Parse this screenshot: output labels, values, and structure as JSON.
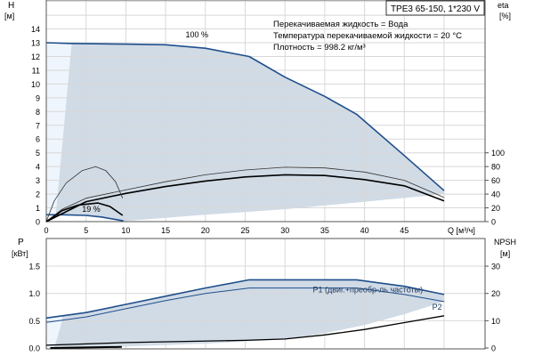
{
  "title_box": "TPE3 65-150, 1*230 V",
  "info": [
    "Перекачиваемая жидкость = Вода",
    "Температура перекачиваемой жидкости = 20 °C",
    "Плотность = 998.2 кг/м³"
  ],
  "colors": {
    "curve_blue": "#1f4e8c",
    "area_dark": "#d0dbe6",
    "area_light": "#eef5fc",
    "black": "#000000"
  },
  "chart_data": [
    {
      "type": "line",
      "name": "head",
      "xlabel": "Q [м³/ч]",
      "ylabel": "H",
      "ylabel_unit": "[м]",
      "y2label": "eta",
      "y2label_unit": "[%]",
      "xlim": [
        0,
        50
      ],
      "ylim": [
        0,
        14
      ],
      "y2lim": [
        0,
        100
      ],
      "grid": true,
      "xticks": [
        0,
        5,
        10,
        15,
        20,
        25,
        30,
        35,
        40,
        45
      ],
      "yticks": [
        0,
        1,
        2,
        3,
        4,
        5,
        6,
        7,
        8,
        9,
        10,
        11,
        12,
        13,
        14
      ],
      "y2ticks": [
        0,
        20,
        40,
        60,
        80,
        100
      ],
      "annotations": [
        {
          "text": "100 %",
          "x": 17.5,
          "y": 13.4
        },
        {
          "text": "19 %",
          "x": 4.5,
          "y": 0.7
        }
      ],
      "series": [
        {
          "label": "100 %",
          "style": "blue",
          "points": [
            [
              0,
              13
            ],
            [
              3,
              12.95
            ],
            [
              10,
              12.9
            ],
            [
              15,
              12.85
            ],
            [
              20,
              12.6
            ],
            [
              25.5,
              12
            ],
            [
              30,
              10.5
            ],
            [
              35,
              9.1
            ],
            [
              39,
              7.8
            ],
            [
              45,
              4.8
            ],
            [
              50,
              2.25
            ]
          ]
        },
        {
          "label": "19 %",
          "style": "blue",
          "points": [
            [
              0,
              0.5
            ],
            [
              2,
              0.5
            ],
            [
              5,
              0.45
            ],
            [
              7,
              0.33
            ],
            [
              9.7,
              0.05
            ]
          ]
        },
        {
          "label": "eta",
          "axis": "eta",
          "style": "thin",
          "points": [
            [
              0,
              0
            ],
            [
              2,
              18
            ],
            [
              5,
              34
            ],
            [
              10,
              46
            ],
            [
              15,
              58
            ],
            [
              20,
              68
            ],
            [
              25,
              75
            ],
            [
              30,
              79
            ],
            [
              35,
              78
            ],
            [
              40,
              72
            ],
            [
              45,
              60
            ],
            [
              50,
              35
            ]
          ]
        },
        {
          "label": "eta",
          "axis": "eta",
          "style": "thick",
          "points": [
            [
              0,
              0
            ],
            [
              5,
              29
            ],
            [
              10,
              41
            ],
            [
              15,
              51
            ],
            [
              20,
              59
            ],
            [
              25,
              65
            ],
            [
              30,
              68
            ],
            [
              35,
              67
            ],
            [
              40,
              61
            ],
            [
              45,
              52
            ],
            [
              50,
              30
            ]
          ]
        },
        {
          "label": "eta 19 %",
          "axis": "eta",
          "style": "thin",
          "points": [
            [
              0,
              0
            ],
            [
              1,
              30
            ],
            [
              2.5,
              56
            ],
            [
              4.5,
              74
            ],
            [
              6.2,
              80
            ],
            [
              7.5,
              74
            ],
            [
              8.7,
              58
            ],
            [
              9.6,
              34
            ]
          ]
        },
        {
          "label": "eta 19 %",
          "axis": "eta",
          "style": "thick",
          "points": [
            [
              0,
              0
            ],
            [
              2,
              16
            ],
            [
              4,
              24
            ],
            [
              6.5,
              27
            ],
            [
              8,
              22
            ],
            [
              9.6,
              9
            ]
          ]
        }
      ],
      "area_dark": [
        [
          3.2,
          13
        ],
        [
          10,
          12.9
        ],
        [
          15,
          12.85
        ],
        [
          20,
          12.6
        ],
        [
          25.5,
          12
        ],
        [
          30,
          10.5
        ],
        [
          35,
          9.1
        ],
        [
          39,
          7.8
        ],
        [
          45,
          4.8
        ],
        [
          50,
          2.25
        ],
        [
          50,
          2.0
        ],
        [
          30,
          0.9
        ],
        [
          20,
          0.5
        ],
        [
          10,
          0.05
        ],
        [
          9.7,
          0.05
        ],
        [
          7,
          0.33
        ],
        [
          5,
          0.45
        ],
        [
          1.2,
          0.5
        ]
      ],
      "area_light": [
        [
          0,
          13
        ],
        [
          3.2,
          13
        ],
        [
          1.2,
          0.5
        ],
        [
          0,
          0.5
        ]
      ]
    },
    {
      "type": "line",
      "name": "power",
      "xlabel": "",
      "ylabel": "P",
      "ylabel_unit": "[кВт]",
      "y2label": "NPSH",
      "y2label_unit": "[м]",
      "xlim": [
        0,
        50
      ],
      "ylim": [
        0,
        2
      ],
      "y2lim": [
        0,
        40
      ],
      "grid": true,
      "yticks": [
        "0.0",
        "0.5",
        "1.0",
        "1.5"
      ],
      "y2ticks": [
        0,
        10,
        20,
        30
      ],
      "annotations": [
        {
          "text": "P1 (двиг.+преобр-ль частоты)",
          "x": 33.5,
          "y": 1.02
        },
        {
          "text": "P2",
          "x": 48.5,
          "y": 0.7
        }
      ],
      "series": [
        {
          "label": "P1 (двиг.+преобр-ль частоты)",
          "style": "blue",
          "points": [
            [
              0,
              0.55
            ],
            [
              5,
              0.65
            ],
            [
              10,
              0.8
            ],
            [
              15,
              0.95
            ],
            [
              20,
              1.1
            ],
            [
              25.5,
              1.25
            ],
            [
              39,
              1.25
            ],
            [
              45,
              1.13
            ],
            [
              50,
              0.98
            ]
          ]
        },
        {
          "label": "P2",
          "style": "blue-thin",
          "points": [
            [
              0,
              0.47
            ],
            [
              5,
              0.57
            ],
            [
              10,
              0.72
            ],
            [
              15,
              0.87
            ],
            [
              20,
              1.0
            ],
            [
              25.5,
              1.1
            ],
            [
              39,
              1.1
            ],
            [
              45,
              0.98
            ],
            [
              50,
              0.85
            ]
          ]
        },
        {
          "label": "NPSH",
          "axis": "npsh",
          "style": "black",
          "points": [
            [
              0,
              1
            ],
            [
              10,
              2
            ],
            [
              25,
              2.8
            ],
            [
              30,
              3.3
            ],
            [
              35,
              4.8
            ],
            [
              40,
              6.8
            ],
            [
              45,
              9.3
            ],
            [
              50,
              11.8
            ]
          ]
        },
        {
          "label": "P 19 %",
          "style": "black-thick",
          "points": [
            [
              0.5,
              0.0
            ],
            [
              9.5,
              0.02
            ]
          ]
        }
      ],
      "area_dark": [
        [
          2,
          0.6
        ],
        [
          5,
          0.65
        ],
        [
          10,
          0.8
        ],
        [
          15,
          0.95
        ],
        [
          20,
          1.1
        ],
        [
          25.5,
          1.25
        ],
        [
          39,
          1.25
        ],
        [
          45,
          1.13
        ],
        [
          50,
          0.98
        ],
        [
          50,
          0.85
        ],
        [
          45,
          0.62
        ],
        [
          40,
          0.42
        ],
        [
          35,
          0.27
        ],
        [
          30,
          0.16
        ],
        [
          20,
          0.08
        ],
        [
          10,
          0.03
        ],
        [
          1,
          0
        ],
        [
          2,
          0.5
        ]
      ],
      "area_light": [
        [
          0,
          0.55
        ],
        [
          2,
          0.6
        ],
        [
          2,
          0.5
        ],
        [
          1,
          0
        ],
        [
          0,
          0
        ]
      ]
    }
  ]
}
